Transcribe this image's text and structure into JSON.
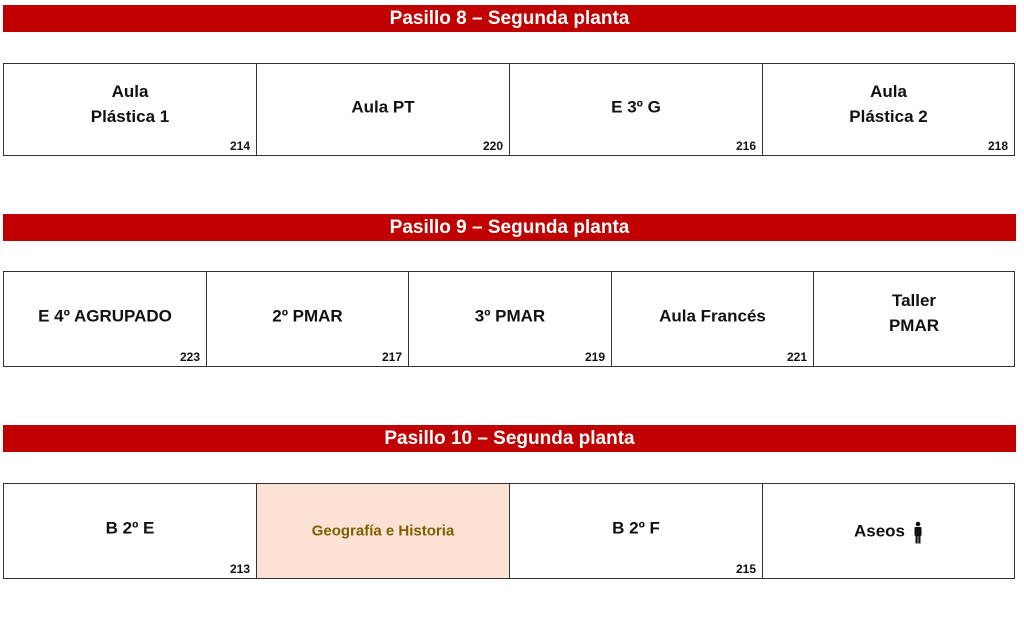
{
  "sections": [
    {
      "title": "Pasillo 8 – Segunda planta",
      "rooms": [
        {
          "name": "Aula\nPlástica 1",
          "number": "214"
        },
        {
          "name": "Aula PT",
          "number": "220"
        },
        {
          "name": "E 3º G",
          "number": "216"
        },
        {
          "name": "Aula\nPlástica 2",
          "number": "218"
        }
      ]
    },
    {
      "title": "Pasillo 9 – Segunda planta",
      "rooms": [
        {
          "name": "E 4º AGRUPADO",
          "number": "223"
        },
        {
          "name": "2º PMAR",
          "number": "217"
        },
        {
          "name": "3º PMAR",
          "number": "219"
        },
        {
          "name": "Aula Francés",
          "number": "221"
        },
        {
          "name": "Taller\nPMAR",
          "number": ""
        }
      ]
    },
    {
      "title": "Pasillo 10 – Segunda planta",
      "rooms": [
        {
          "name": "B 2º E",
          "number": "213"
        },
        {
          "name": "Geografía e Historia",
          "number": "",
          "highlight_color": "#fbe2d5"
        },
        {
          "name": "B  2º F",
          "number": "215"
        },
        {
          "name": "Aseos",
          "number": "",
          "icon": "person-icon"
        }
      ]
    }
  ],
  "colors": {
    "banner": "#c00000",
    "highlight": "#fbe2d5",
    "highlight_text": "#7f6000"
  }
}
